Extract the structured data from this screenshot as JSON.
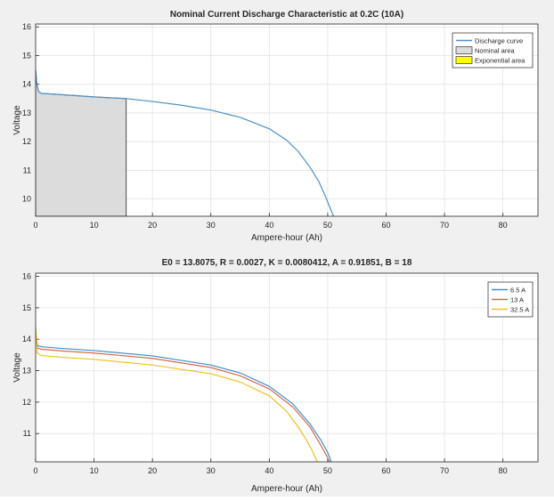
{
  "chart_data": [
    {
      "type": "line",
      "title": "Nominal Current Discharge Characteristic at 0.2C (10A)",
      "xlabel": "Ampere-hour (Ah)",
      "ylabel": "Voltage",
      "xlim": [
        0,
        86
      ],
      "ylim": [
        9.4,
        16.1
      ],
      "xticks": [
        0,
        10,
        20,
        30,
        40,
        50,
        60,
        70,
        80
      ],
      "yticks": [
        10,
        11,
        12,
        13,
        14,
        15,
        16
      ],
      "grid": true,
      "legend_position": "top-right",
      "series": [
        {
          "name": "Discharge curve",
          "color": "#4a90c8",
          "x": [
            0,
            0.2,
            0.5,
            1,
            3,
            5,
            10,
            15.5,
            20,
            25,
            30,
            35,
            40,
            43,
            45,
            47,
            48.5,
            49.5,
            50.3,
            51
          ],
          "y": [
            14.5,
            14.0,
            13.75,
            13.68,
            13.66,
            13.63,
            13.56,
            13.5,
            13.4,
            13.27,
            13.1,
            12.85,
            12.45,
            12.05,
            11.65,
            11.1,
            10.6,
            10.15,
            9.75,
            9.4
          ]
        }
      ],
      "areas": [
        {
          "name": "Nominal area",
          "color": "#dcdcdc",
          "x_range": [
            0,
            15.5
          ]
        },
        {
          "name": "Exponential area",
          "color": "#ffff00"
        }
      ]
    },
    {
      "type": "line",
      "title": "E0 = 13.8075, R = 0.0027, K = 0.0080412, A = 0.91851, B = 18",
      "xlabel": "Ampere-hour (Ah)",
      "ylabel": "Voltage",
      "xlim": [
        0,
        86
      ],
      "ylim": [
        10.1,
        16.1
      ],
      "xticks": [
        0,
        10,
        20,
        30,
        40,
        50,
        60,
        70,
        80
      ],
      "yticks": [
        11,
        12,
        13,
        14,
        15,
        16
      ],
      "grid": true,
      "legend_position": "top-right",
      "series": [
        {
          "name": "6.5 A",
          "color": "#3c8fd0",
          "x": [
            0,
            0.3,
            1,
            5,
            10,
            20,
            30,
            35,
            40,
            44,
            47,
            48.8,
            50,
            50.6
          ],
          "y": [
            14.2,
            13.8,
            13.76,
            13.7,
            13.64,
            13.47,
            13.18,
            12.93,
            12.5,
            11.95,
            11.3,
            10.8,
            10.4,
            10.1
          ]
        },
        {
          "name": "13 A",
          "color": "#d36a4a",
          "x": [
            0,
            0.3,
            1,
            5,
            10,
            20,
            30,
            35,
            40,
            44,
            47,
            48.6,
            49.8,
            50.3
          ],
          "y": [
            14.3,
            13.72,
            13.68,
            13.62,
            13.56,
            13.39,
            13.1,
            12.84,
            12.42,
            11.85,
            11.2,
            10.7,
            10.3,
            10.1
          ]
        },
        {
          "name": "32.5 A",
          "color": "#f0c020",
          "x": [
            0,
            0.3,
            1,
            5,
            10,
            20,
            30,
            35,
            40,
            43,
            45,
            46.5,
            47.5,
            48.2
          ],
          "y": [
            14.4,
            13.55,
            13.48,
            13.42,
            13.36,
            13.18,
            12.9,
            12.64,
            12.2,
            11.7,
            11.2,
            10.75,
            10.4,
            10.1
          ]
        }
      ]
    }
  ]
}
